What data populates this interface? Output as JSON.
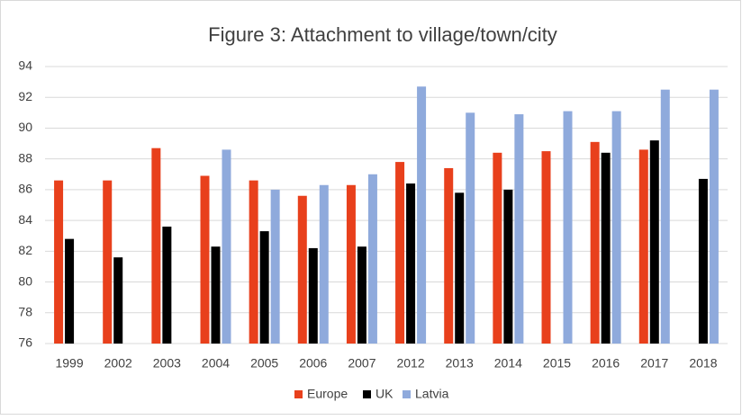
{
  "chart_data": {
    "type": "bar",
    "title": "Figure 3: Attachment to village/town/city",
    "categories": [
      "1999",
      "2002",
      "2003",
      "2004",
      "2005",
      "2006",
      "2007",
      "2012",
      "2013",
      "2014",
      "2015",
      "2016",
      "2017",
      "2018"
    ],
    "series": [
      {
        "name": "Europe",
        "color": "#e8401c",
        "values": [
          86.6,
          86.6,
          88.7,
          86.9,
          86.6,
          85.6,
          86.3,
          87.8,
          87.4,
          88.4,
          88.5,
          89.1,
          88.6,
          null
        ]
      },
      {
        "name": "UK",
        "color": "#000000",
        "values": [
          82.8,
          81.6,
          83.6,
          82.3,
          83.3,
          82.2,
          82.3,
          86.4,
          85.8,
          86.0,
          null,
          88.4,
          89.2,
          86.7
        ]
      },
      {
        "name": "Latvia",
        "color": "#8faadc",
        "values": [
          null,
          null,
          null,
          88.6,
          86.0,
          86.3,
          87.0,
          92.7,
          91.0,
          90.9,
          91.1,
          91.1,
          92.5,
          92.5
        ]
      }
    ],
    "ylim": [
      76,
      94
    ],
    "yticks": [
      76,
      78,
      80,
      82,
      84,
      86,
      88,
      90,
      92,
      94
    ],
    "grid": true,
    "legend": "bottom"
  }
}
